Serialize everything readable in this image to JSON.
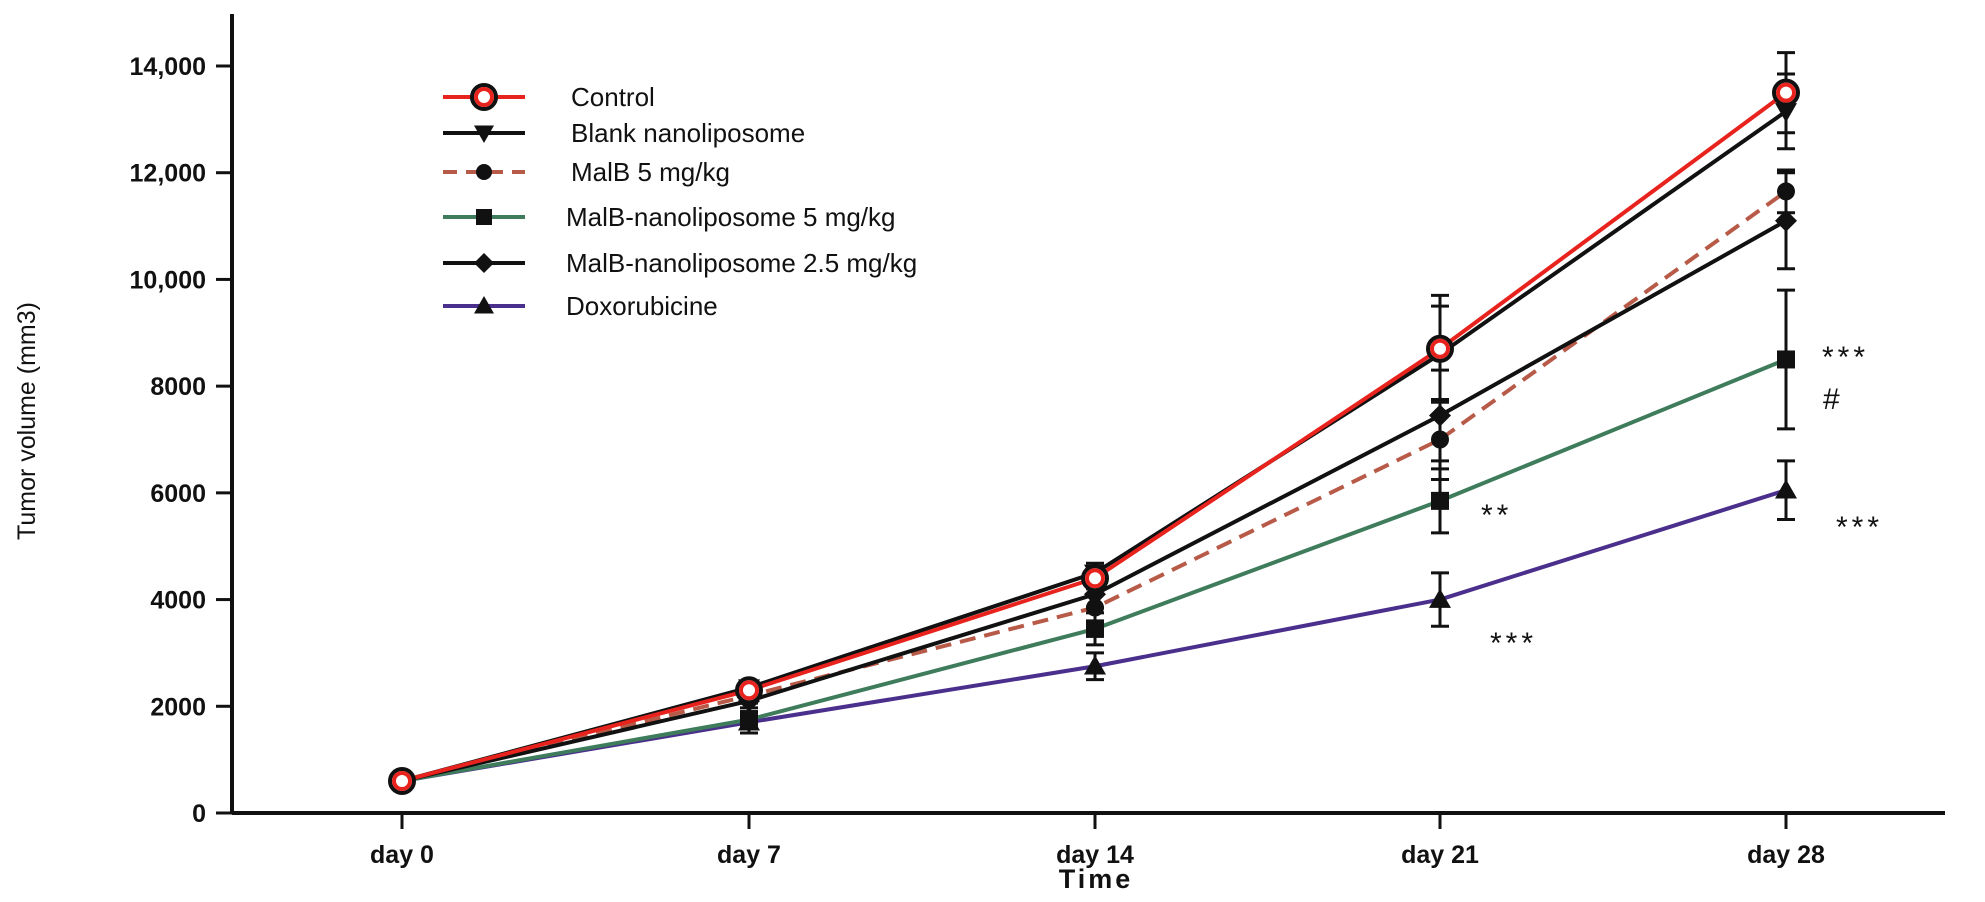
{
  "chart_data": {
    "type": "line",
    "title": "",
    "xlabel": "Time",
    "ylabel": "Tumor volume (mm3)",
    "categories": [
      "day 0",
      "day 7",
      "day 14",
      "day 21",
      "day 28"
    ],
    "ylim": [
      0,
      14000
    ],
    "yticks": [
      0,
      2000,
      4000,
      6000,
      8000,
      10000,
      12000,
      14000
    ],
    "ytick_labels": [
      "0",
      "2000",
      "4000",
      "6000",
      "8000",
      "10,000",
      "12,000",
      "14,000"
    ],
    "legend_position": "top-left",
    "grid": false,
    "series": [
      {
        "name": "Control",
        "color": "#e8231e",
        "marker": "ring",
        "dash": "solid",
        "values": [
          600,
          2300,
          4400,
          8700,
          13500
        ],
        "errors": [
          60,
          120,
          200,
          1000,
          750
        ]
      },
      {
        "name": "Blank nanoliposome",
        "color": "#111111",
        "marker": "triangle-down",
        "dash": "solid",
        "values": [
          600,
          2350,
          4500,
          8600,
          13150
        ],
        "errors": [
          60,
          120,
          180,
          900,
          700
        ]
      },
      {
        "name": "MalB 5 mg/kg",
        "color": "#b85a48",
        "marker": "circle",
        "dash": "dashed",
        "values": [
          600,
          2200,
          3850,
          7000,
          11650
        ],
        "errors": [
          60,
          140,
          250,
          750,
          400
        ]
      },
      {
        "name": "MalB-nanoliposome 5 mg/kg",
        "color": "#3e7c5c",
        "marker": "square",
        "dash": "solid",
        "values": [
          600,
          1750,
          3450,
          5850,
          8500
        ],
        "errors": [
          60,
          150,
          300,
          600,
          1300
        ]
      },
      {
        "name": "MalB-nanoliposome 2.5 mg/kg",
        "color": "#111111",
        "marker": "diamond",
        "dash": "solid",
        "values": [
          600,
          2100,
          4100,
          7450,
          11100
        ],
        "errors": [
          60,
          130,
          250,
          850,
          900
        ]
      },
      {
        "name": "Doxorubicine",
        "color": "#4a2f8c",
        "marker": "triangle-up",
        "dash": "solid",
        "values": [
          600,
          1700,
          2750,
          4000,
          6050
        ],
        "errors": [
          60,
          200,
          250,
          500,
          550
        ]
      }
    ],
    "annotations": [
      {
        "text": "***",
        "category_index": 4,
        "y": 8500
      },
      {
        "text": "#",
        "category_index": 4,
        "y": 7700
      },
      {
        "text": "**",
        "category_index": 3,
        "y": 5650
      },
      {
        "text": "***",
        "category_index": 4,
        "y": 5400
      },
      {
        "text": "***",
        "category_index": 3,
        "y": 3250
      }
    ]
  }
}
